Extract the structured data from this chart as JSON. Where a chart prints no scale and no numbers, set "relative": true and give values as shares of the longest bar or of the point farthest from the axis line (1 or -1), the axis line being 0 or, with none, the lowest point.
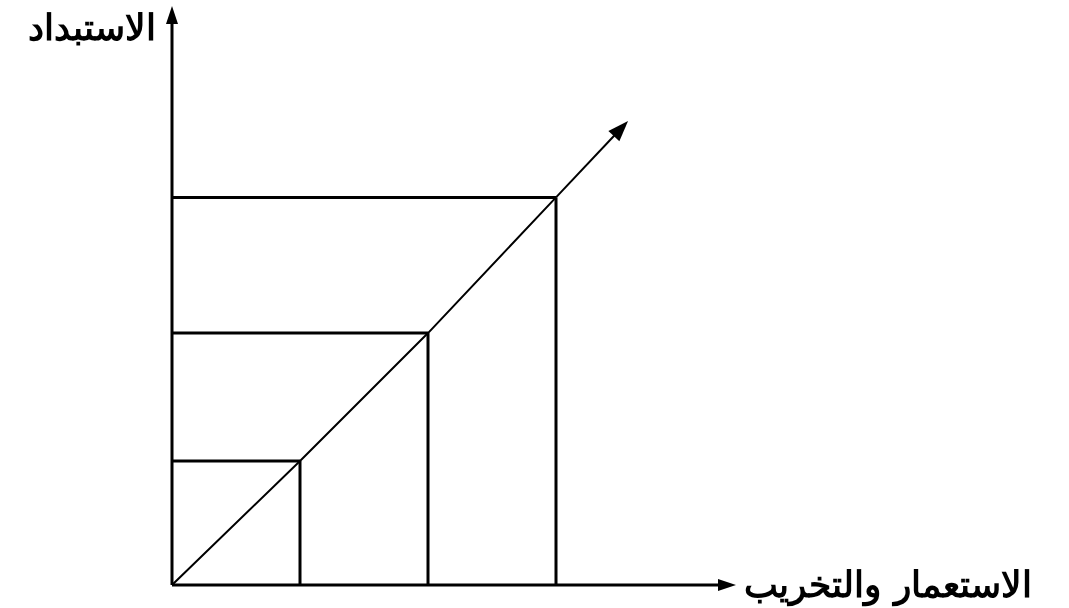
{
  "chart_data": {
    "type": "line",
    "relative": true,
    "annotations": [
      "الاستعمار والتخريب",
      "الاستبداد"
    ],
    "marker": "none",
    "categories": [
      null,
      null,
      null,
      null
    ],
    "series": [
      {
        "color": "#000000",
        "values": [
          0,
          0.32,
          0.65,
          1
        ]
      }
    ]
  }
}
